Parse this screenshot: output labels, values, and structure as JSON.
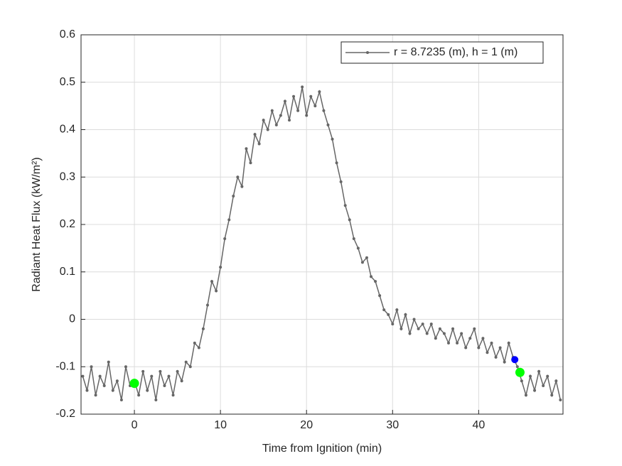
{
  "chart_data": {
    "type": "line",
    "xlabel": "Time from Ignition (min)",
    "ylabel": "Radiant Heat Flux (kW/m²)",
    "xlim": [
      -6.2,
      49.8
    ],
    "xticks": [
      0,
      10,
      20,
      30,
      40
    ],
    "ylim": [
      -0.2,
      0.6
    ],
    "yticks": [
      -0.2,
      -0.1,
      0,
      0.1,
      0.2,
      0.3,
      0.4,
      0.5,
      0.6
    ],
    "grid": true,
    "legend_position": "upper right",
    "x": [
      -6,
      -5.5,
      -5,
      -4.5,
      -4,
      -3.5,
      -3,
      -2.5,
      -2,
      -1.5,
      -1,
      -0.5,
      0,
      0.5,
      1,
      1.5,
      2,
      2.5,
      3,
      3.5,
      4,
      4.5,
      5,
      5.5,
      6,
      6.5,
      7,
      7.5,
      8,
      8.5,
      9,
      9.5,
      10,
      10.5,
      11,
      11.5,
      12,
      12.5,
      13,
      13.5,
      14,
      14.5,
      15,
      15.5,
      16,
      16.5,
      17,
      17.5,
      18,
      18.5,
      19,
      19.5,
      20,
      20.5,
      21,
      21.5,
      22,
      22.5,
      23,
      23.5,
      24,
      24.5,
      25,
      25.5,
      26,
      26.5,
      27,
      27.5,
      28,
      28.5,
      29,
      29.5,
      30,
      30.5,
      31,
      31.5,
      32,
      32.5,
      33,
      33.5,
      34,
      34.5,
      35,
      35.5,
      36,
      36.5,
      37,
      37.5,
      38,
      38.5,
      39,
      39.5,
      40,
      40.5,
      41,
      41.5,
      42,
      42.5,
      43,
      43.5,
      44,
      44.5,
      45,
      45.5,
      46,
      46.5,
      47,
      47.5,
      48,
      48.5,
      49,
      49.5
    ],
    "series": [
      {
        "name": "r = 8.7235 (m), h = 1 (m)",
        "color": "#666666",
        "values": [
          -0.12,
          -0.15,
          -0.1,
          -0.16,
          -0.12,
          -0.14,
          -0.09,
          -0.15,
          -0.13,
          -0.17,
          -0.1,
          -0.14,
          -0.13,
          -0.16,
          -0.11,
          -0.15,
          -0.12,
          -0.17,
          -0.11,
          -0.14,
          -0.12,
          -0.16,
          -0.11,
          -0.13,
          -0.09,
          -0.1,
          -0.05,
          -0.06,
          -0.02,
          0.03,
          0.08,
          0.06,
          0.11,
          0.17,
          0.21,
          0.26,
          0.3,
          0.28,
          0.36,
          0.33,
          0.39,
          0.37,
          0.42,
          0.4,
          0.44,
          0.41,
          0.43,
          0.46,
          0.42,
          0.47,
          0.44,
          0.49,
          0.43,
          0.47,
          0.45,
          0.48,
          0.44,
          0.41,
          0.38,
          0.33,
          0.29,
          0.24,
          0.21,
          0.17,
          0.15,
          0.12,
          0.13,
          0.09,
          0.08,
          0.05,
          0.02,
          0.01,
          -0.01,
          0.02,
          -0.02,
          0.01,
          -0.03,
          0,
          -0.02,
          -0.01,
          -0.03,
          -0.01,
          -0.04,
          -0.02,
          -0.03,
          -0.05,
          -0.02,
          -0.05,
          -0.03,
          -0.06,
          -0.04,
          -0.02,
          -0.06,
          -0.04,
          -0.07,
          -0.05,
          -0.08,
          -0.06,
          -0.09,
          -0.05,
          -0.08,
          -0.1,
          -0.13,
          -0.16,
          -0.12,
          -0.15,
          -0.11,
          -0.14,
          -0.12,
          -0.16,
          -0.13,
          -0.17
        ]
      }
    ],
    "markers": [
      {
        "x": 0,
        "y": -0.135,
        "color": "#00ff00"
      },
      {
        "x": 44.2,
        "y": -0.085,
        "color": "#0000ff"
      },
      {
        "x": 44.8,
        "y": -0.112,
        "color": "#00ff00"
      }
    ]
  }
}
